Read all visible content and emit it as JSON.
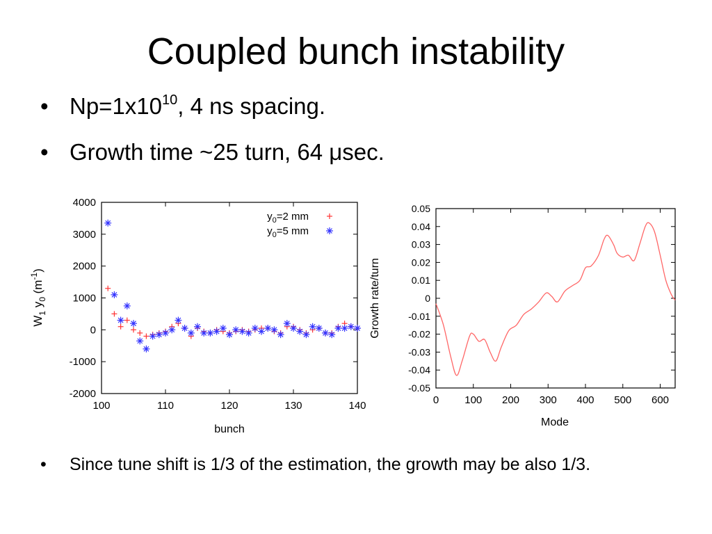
{
  "title": "Coupled bunch instability",
  "bullets": {
    "b1": {
      "prefix": "Np=1x10",
      "sup": "10",
      "suffix": ", 4 ns spacing."
    },
    "b2": {
      "text": "Growth time ~25 turn, 64 μsec."
    },
    "b3": {
      "text": "Since tune shift is 1/3 of the estimation, the growth may be also 1/3."
    },
    "symbol": "•"
  },
  "chart_data": [
    {
      "type": "scatter",
      "xlabel": "bunch",
      "ylabel": "W1 y0 (m-1)",
      "xlim": [
        100,
        140
      ],
      "ylim": [
        -2000,
        4000
      ],
      "xticks": [
        "100",
        "110",
        "120",
        "130",
        "140"
      ],
      "yticks": [
        "-2000",
        "-1000",
        "0",
        "1000",
        "2000",
        "3000",
        "4000"
      ],
      "legend_position": "top-right",
      "series": [
        {
          "name": "y0=2 mm",
          "marker": "plus",
          "color": "#ff3333",
          "x": [
            101,
            102,
            103,
            104,
            105,
            106,
            107,
            108,
            109,
            110,
            111,
            112,
            113,
            114,
            115,
            116,
            117,
            118,
            119,
            120,
            121,
            122,
            123,
            124,
            125,
            126,
            127,
            128,
            129,
            130,
            131,
            132,
            133,
            134,
            135,
            136,
            137,
            138,
            139,
            140
          ],
          "y": [
            1300,
            500,
            100,
            300,
            0,
            -100,
            -200,
            -150,
            -100,
            -50,
            100,
            200,
            50,
            -200,
            50,
            -50,
            -100,
            0,
            -50,
            -100,
            -50,
            0,
            -50,
            0,
            50,
            50,
            -50,
            -100,
            100,
            100,
            0,
            -100,
            0,
            50,
            -100,
            -100,
            100,
            200,
            100,
            50
          ]
        },
        {
          "name": "y0=5 mm",
          "marker": "star",
          "color": "#3333ff",
          "x": [
            101,
            102,
            103,
            104,
            105,
            106,
            107,
            108,
            109,
            110,
            111,
            112,
            113,
            114,
            115,
            116,
            117,
            118,
            119,
            120,
            121,
            122,
            123,
            124,
            125,
            126,
            127,
            128,
            129,
            130,
            131,
            132,
            133,
            134,
            135,
            136,
            137,
            138,
            139,
            140
          ],
          "y": [
            3350,
            1100,
            300,
            750,
            200,
            -350,
            -600,
            -200,
            -150,
            -100,
            0,
            300,
            50,
            -100,
            100,
            -100,
            -100,
            -50,
            50,
            -150,
            0,
            -50,
            -100,
            50,
            -50,
            50,
            0,
            -150,
            200,
            50,
            -50,
            -150,
            100,
            50,
            -100,
            -150,
            50,
            50,
            100,
            50
          ]
        }
      ]
    },
    {
      "type": "line",
      "xlabel": "Mode",
      "ylabel": "Growth rate/turn",
      "xlim": [
        0,
        640
      ],
      "ylim": [
        -0.05,
        0.05
      ],
      "xticks": [
        "0",
        "100",
        "200",
        "300",
        "400",
        "500",
        "600"
      ],
      "yticks": [
        "-0.05",
        "-0.04",
        "-0.03",
        "-0.02",
        "-0.01",
        "0",
        "0.01",
        "0.02",
        "0.03",
        "0.04",
        "0.05"
      ],
      "color": "#ff6666",
      "x": [
        0,
        20,
        40,
        55,
        70,
        90,
        100,
        115,
        130,
        145,
        160,
        175,
        195,
        215,
        235,
        255,
        275,
        295,
        310,
        325,
        345,
        365,
        385,
        400,
        415,
        435,
        450,
        460,
        475,
        485,
        500,
        515,
        530,
        545,
        560,
        570,
        585,
        600,
        615,
        630,
        640
      ],
      "y": [
        -0.003,
        -0.015,
        -0.033,
        -0.043,
        -0.035,
        -0.021,
        -0.02,
        -0.024,
        -0.023,
        -0.03,
        -0.035,
        -0.027,
        -0.018,
        -0.015,
        -0.009,
        -0.006,
        -0.002,
        0.003,
        0.001,
        -0.002,
        0.004,
        0.007,
        0.01,
        0.017,
        0.018,
        0.024,
        0.033,
        0.035,
        0.03,
        0.025,
        0.023,
        0.024,
        0.021,
        0.03,
        0.04,
        0.042,
        0.037,
        0.024,
        0.01,
        0.002,
        -0.001
      ]
    }
  ]
}
